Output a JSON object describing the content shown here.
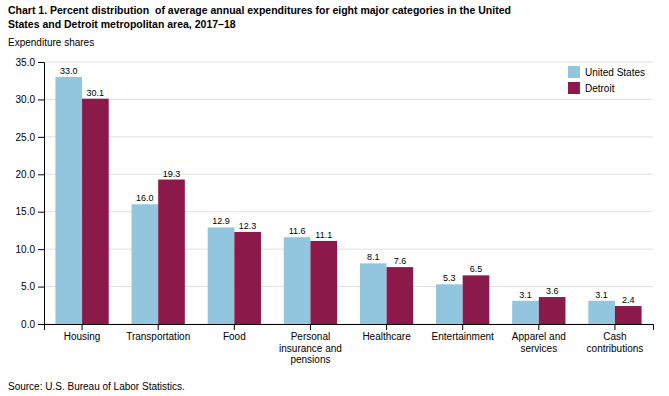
{
  "chart_data": {
    "type": "bar",
    "title": "Chart 1. Percent distribution  of average annual expenditures for eight major categories in the United\nStates and Detroit metropolitan area, 2017–18",
    "subtitle": "Expenditure shares",
    "source": "Source: U.S. Bureau of Labor Statistics.",
    "categories": [
      "Housing",
      "Transportation",
      "Food",
      "Personal\ninsurance and\npensions",
      "Healthcare",
      "Entertainment",
      "Apparel and\nservices",
      "Cash\ncontributions"
    ],
    "series": [
      {
        "name": "United States",
        "color": "#92C5DE",
        "values": [
          33.0,
          16.0,
          12.9,
          11.6,
          8.1,
          5.3,
          3.1,
          3.1
        ],
        "value_labels": [
          "33.0",
          "16.0",
          "12.9",
          "11.6",
          "8.1",
          "5.3",
          "3.1",
          "3.1"
        ]
      },
      {
        "name": "Detroit",
        "color": "#8B1A4A",
        "values": [
          30.1,
          19.3,
          12.3,
          11.1,
          7.6,
          6.5,
          3.6,
          2.4
        ],
        "value_labels": [
          "30.1",
          "19.3",
          "12.3",
          "11.1",
          "7.6",
          "6.5",
          "3.6",
          "2.4"
        ]
      }
    ],
    "ylim": [
      0,
      35
    ],
    "yticks": [
      {
        "value": 0,
        "label": "0.0"
      },
      {
        "value": 5,
        "label": "5.0"
      },
      {
        "value": 10,
        "label": "10.0"
      },
      {
        "value": 15,
        "label": "15.0"
      },
      {
        "value": 20,
        "label": "20.0"
      },
      {
        "value": 25,
        "label": "25.0"
      },
      {
        "value": 30,
        "label": "30.0"
      },
      {
        "value": 35,
        "label": "35.0"
      }
    ],
    "grid": true,
    "legend": "upper right",
    "data_labels": true
  }
}
